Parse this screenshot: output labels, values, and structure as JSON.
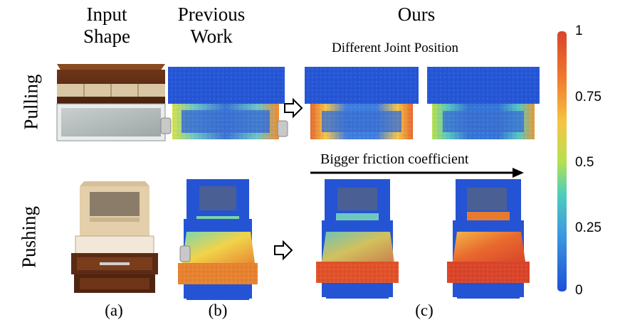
{
  "headers": {
    "input": "Input\nShape",
    "previous": "Previous\nWork",
    "ours": "Ours",
    "ours_sub": "Different Joint Position"
  },
  "row_labels": {
    "pulling": "Pulling",
    "pushing": "Pushing"
  },
  "friction_label": "Bigger friction coefficient",
  "captions": {
    "a": "(a)",
    "b": "(b)",
    "c": "(c)"
  },
  "colorbar": {
    "ticks": [
      "1",
      "0.75",
      "0.5",
      "0.25",
      "0"
    ],
    "colors": [
      "#d73027",
      "#f46d43",
      "#fdae61",
      "#fee08b",
      "#d9ef8b",
      "#66c2a5",
      "#3288bd",
      "#2456c7",
      "#1f4fd6"
    ]
  }
}
